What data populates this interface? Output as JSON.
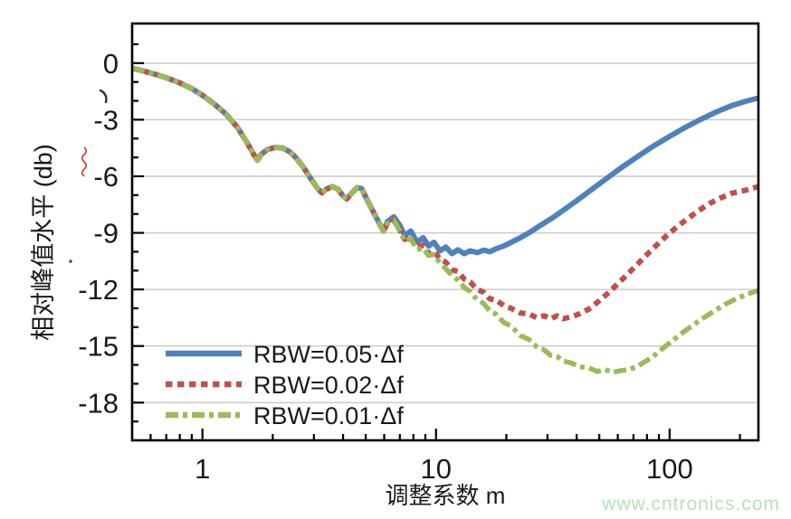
{
  "watermark": {
    "text": "www.cntronics.com",
    "color": "#b7e3b7"
  },
  "chart_data": {
    "type": "line",
    "title": "",
    "xlabel": "调整系数 m",
    "ylabel": "相对峰值水平 (db)",
    "x_scale": "log",
    "xlim": [
      0.5,
      240
    ],
    "ylim": [
      -20,
      2.1
    ],
    "x_major_ticks": [
      1,
      10,
      100
    ],
    "x_major_tick_labels": [
      "1",
      "10",
      "100"
    ],
    "x_minor_ticks": [
      0.6,
      0.7,
      0.8,
      0.9,
      2,
      3,
      4,
      5,
      6,
      7,
      8,
      9,
      20,
      30,
      40,
      50,
      60,
      70,
      80,
      90,
      200
    ],
    "y_major_ticks": [
      0,
      -3,
      -6,
      -9,
      -12,
      -15,
      -18
    ],
    "y_major_tick_labels": [
      "0",
      "-3",
      "-6",
      "-9",
      "-12",
      "-15",
      "-18"
    ],
    "y_minor_ticks": [
      1,
      -1,
      -2,
      -4,
      -5,
      -7,
      -8,
      -10,
      -11,
      -13,
      -14,
      -16,
      -17,
      -19
    ],
    "grid": "horizontal-major-only",
    "grid_color": "#cccccc",
    "frame_color": "#000000",
    "text_color": "#1a1a1a",
    "legend_position": "lower-left-inside",
    "series": [
      {
        "name": "RBW=0.05·Δf",
        "color": "#4f81bd",
        "style": "solid",
        "points": [
          [
            0.5,
            -0.28
          ],
          [
            0.56,
            -0.42
          ],
          [
            0.63,
            -0.6
          ],
          [
            0.71,
            -0.8
          ],
          [
            0.8,
            -1.05
          ],
          [
            0.9,
            -1.35
          ],
          [
            1.0,
            -1.7
          ],
          [
            1.12,
            -2.15
          ],
          [
            1.26,
            -2.7
          ],
          [
            1.41,
            -3.4
          ],
          [
            1.55,
            -4.2
          ],
          [
            1.65,
            -4.8
          ],
          [
            1.72,
            -5.15
          ],
          [
            1.78,
            -4.85
          ],
          [
            1.9,
            -4.58
          ],
          [
            2.05,
            -4.47
          ],
          [
            2.2,
            -4.5
          ],
          [
            2.35,
            -4.68
          ],
          [
            2.5,
            -4.98
          ],
          [
            2.7,
            -5.5
          ],
          [
            2.9,
            -6.1
          ],
          [
            3.1,
            -6.62
          ],
          [
            3.25,
            -6.88
          ],
          [
            3.4,
            -6.68
          ],
          [
            3.6,
            -6.55
          ],
          [
            3.8,
            -6.68
          ],
          [
            4.0,
            -7.05
          ],
          [
            4.15,
            -7.2
          ],
          [
            4.35,
            -6.9
          ],
          [
            4.6,
            -6.6
          ],
          [
            4.8,
            -6.65
          ],
          [
            5.1,
            -7.3
          ],
          [
            5.5,
            -8.1
          ],
          [
            5.95,
            -8.9
          ],
          [
            6.2,
            -8.4
          ],
          [
            6.6,
            -8.15
          ],
          [
            7.0,
            -8.6
          ],
          [
            7.35,
            -9.15
          ],
          [
            7.8,
            -8.9
          ],
          [
            8.3,
            -9.5
          ],
          [
            8.8,
            -9.25
          ],
          [
            9.3,
            -9.7
          ],
          [
            9.8,
            -9.5
          ],
          [
            10.4,
            -9.95
          ],
          [
            11.0,
            -9.75
          ],
          [
            11.7,
            -10.1
          ],
          [
            12.4,
            -9.9
          ],
          [
            13.2,
            -10.1
          ],
          [
            14.0,
            -9.95
          ],
          [
            15.0,
            -10.05
          ],
          [
            16.0,
            -9.92
          ],
          [
            17.0,
            -10.0
          ],
          [
            18.0,
            -9.85
          ],
          [
            19.5,
            -9.7
          ],
          [
            21.0,
            -9.5
          ],
          [
            23.0,
            -9.25
          ],
          [
            25.0,
            -9.0
          ],
          [
            28.0,
            -8.6
          ],
          [
            32.0,
            -8.15
          ],
          [
            36.0,
            -7.7
          ],
          [
            41.0,
            -7.2
          ],
          [
            47.0,
            -6.65
          ],
          [
            54.0,
            -6.1
          ],
          [
            62.0,
            -5.55
          ],
          [
            72.0,
            -5.0
          ],
          [
            84.0,
            -4.45
          ],
          [
            98.0,
            -3.95
          ],
          [
            115.0,
            -3.45
          ],
          [
            135.0,
            -3.0
          ],
          [
            158.0,
            -2.6
          ],
          [
            185.0,
            -2.25
          ],
          [
            215.0,
            -2.0
          ],
          [
            240.0,
            -1.85
          ]
        ]
      },
      {
        "name": "RBW=0.02·Δf",
        "color": "#c0504d",
        "style": "dashed",
        "points": [
          [
            0.5,
            -0.28
          ],
          [
            0.56,
            -0.42
          ],
          [
            0.63,
            -0.6
          ],
          [
            0.71,
            -0.8
          ],
          [
            0.8,
            -1.05
          ],
          [
            0.9,
            -1.35
          ],
          [
            1.0,
            -1.7
          ],
          [
            1.12,
            -2.15
          ],
          [
            1.26,
            -2.7
          ],
          [
            1.41,
            -3.4
          ],
          [
            1.55,
            -4.2
          ],
          [
            1.65,
            -4.8
          ],
          [
            1.72,
            -5.15
          ],
          [
            1.78,
            -4.85
          ],
          [
            1.9,
            -4.58
          ],
          [
            2.05,
            -4.47
          ],
          [
            2.2,
            -4.5
          ],
          [
            2.35,
            -4.68
          ],
          [
            2.5,
            -4.98
          ],
          [
            2.7,
            -5.5
          ],
          [
            2.9,
            -6.1
          ],
          [
            3.1,
            -6.62
          ],
          [
            3.25,
            -6.88
          ],
          [
            3.4,
            -6.68
          ],
          [
            3.6,
            -6.55
          ],
          [
            3.8,
            -6.68
          ],
          [
            4.0,
            -7.05
          ],
          [
            4.15,
            -7.2
          ],
          [
            4.35,
            -6.9
          ],
          [
            4.6,
            -6.6
          ],
          [
            4.8,
            -6.65
          ],
          [
            5.1,
            -7.3
          ],
          [
            5.5,
            -8.1
          ],
          [
            5.95,
            -8.9
          ],
          [
            6.2,
            -8.5
          ],
          [
            6.6,
            -8.3
          ],
          [
            7.0,
            -8.85
          ],
          [
            7.35,
            -9.35
          ],
          [
            7.8,
            -9.2
          ],
          [
            8.3,
            -9.8
          ],
          [
            8.8,
            -9.65
          ],
          [
            9.3,
            -10.1
          ],
          [
            9.8,
            -9.95
          ],
          [
            10.4,
            -10.4
          ],
          [
            11.0,
            -10.55
          ],
          [
            11.7,
            -10.95
          ],
          [
            12.4,
            -11.05
          ],
          [
            13.2,
            -11.45
          ],
          [
            14.0,
            -11.6
          ],
          [
            15.0,
            -12.0
          ],
          [
            16.0,
            -12.15
          ],
          [
            17.0,
            -12.5
          ],
          [
            18.0,
            -12.55
          ],
          [
            19.5,
            -12.85
          ],
          [
            21.0,
            -13.0
          ],
          [
            23.0,
            -13.25
          ],
          [
            25.0,
            -13.3
          ],
          [
            27.0,
            -13.5
          ],
          [
            29.0,
            -13.4
          ],
          [
            31.0,
            -13.55
          ],
          [
            33.0,
            -13.4
          ],
          [
            35.0,
            -13.55
          ],
          [
            38.0,
            -13.45
          ],
          [
            41.0,
            -13.3
          ],
          [
            45.0,
            -13.05
          ],
          [
            50.0,
            -12.6
          ],
          [
            55.0,
            -12.15
          ],
          [
            60.0,
            -11.7
          ],
          [
            66.0,
            -11.2
          ],
          [
            73.0,
            -10.65
          ],
          [
            80.0,
            -10.15
          ],
          [
            88.0,
            -9.65
          ],
          [
            97.0,
            -9.15
          ],
          [
            107.0,
            -8.7
          ],
          [
            118.0,
            -8.3
          ],
          [
            132.0,
            -7.85
          ],
          [
            148.0,
            -7.45
          ],
          [
            165.0,
            -7.15
          ],
          [
            185.0,
            -6.9
          ],
          [
            210.0,
            -6.75
          ],
          [
            240.0,
            -6.55
          ]
        ]
      },
      {
        "name": "RBW=0.01·Δf",
        "color": "#9bbb59",
        "style": "dashdot",
        "points": [
          [
            0.5,
            -0.28
          ],
          [
            0.56,
            -0.42
          ],
          [
            0.63,
            -0.6
          ],
          [
            0.71,
            -0.8
          ],
          [
            0.8,
            -1.05
          ],
          [
            0.9,
            -1.35
          ],
          [
            1.0,
            -1.7
          ],
          [
            1.12,
            -2.15
          ],
          [
            1.26,
            -2.7
          ],
          [
            1.41,
            -3.4
          ],
          [
            1.55,
            -4.2
          ],
          [
            1.65,
            -4.8
          ],
          [
            1.72,
            -5.15
          ],
          [
            1.78,
            -4.85
          ],
          [
            1.9,
            -4.58
          ],
          [
            2.05,
            -4.47
          ],
          [
            2.2,
            -4.5
          ],
          [
            2.35,
            -4.68
          ],
          [
            2.5,
            -4.98
          ],
          [
            2.7,
            -5.5
          ],
          [
            2.9,
            -6.1
          ],
          [
            3.1,
            -6.62
          ],
          [
            3.25,
            -6.88
          ],
          [
            3.4,
            -6.68
          ],
          [
            3.6,
            -6.55
          ],
          [
            3.8,
            -6.68
          ],
          [
            4.0,
            -7.05
          ],
          [
            4.15,
            -7.2
          ],
          [
            4.35,
            -6.9
          ],
          [
            4.6,
            -6.6
          ],
          [
            4.8,
            -6.65
          ],
          [
            5.1,
            -7.3
          ],
          [
            5.5,
            -8.1
          ],
          [
            5.95,
            -8.9
          ],
          [
            6.2,
            -8.5
          ],
          [
            6.6,
            -8.35
          ],
          [
            7.0,
            -8.9
          ],
          [
            7.35,
            -9.45
          ],
          [
            7.8,
            -9.3
          ],
          [
            8.3,
            -9.9
          ],
          [
            8.8,
            -9.8
          ],
          [
            9.3,
            -10.2
          ],
          [
            9.8,
            -10.15
          ],
          [
            10.4,
            -10.6
          ],
          [
            11.0,
            -10.9
          ],
          [
            11.7,
            -11.25
          ],
          [
            12.4,
            -11.5
          ],
          [
            13.2,
            -11.9
          ],
          [
            14.0,
            -12.1
          ],
          [
            15.0,
            -12.55
          ],
          [
            16.0,
            -12.75
          ],
          [
            17.0,
            -13.15
          ],
          [
            18.0,
            -13.3
          ],
          [
            19.5,
            -13.75
          ],
          [
            21.0,
            -13.95
          ],
          [
            23.0,
            -14.45
          ],
          [
            25.0,
            -14.65
          ],
          [
            27.0,
            -15.05
          ],
          [
            29.0,
            -15.2
          ],
          [
            31.0,
            -15.5
          ],
          [
            33.0,
            -15.55
          ],
          [
            35.0,
            -15.8
          ],
          [
            38.0,
            -15.9
          ],
          [
            41.0,
            -16.1
          ],
          [
            45.0,
            -16.15
          ],
          [
            49.0,
            -16.35
          ],
          [
            53.0,
            -16.25
          ],
          [
            57.0,
            -16.4
          ],
          [
            62.0,
            -16.3
          ],
          [
            67.0,
            -16.25
          ],
          [
            72.0,
            -16.1
          ],
          [
            78.0,
            -15.85
          ],
          [
            85.0,
            -15.55
          ],
          [
            93.0,
            -15.15
          ],
          [
            102.0,
            -14.75
          ],
          [
            112.0,
            -14.35
          ],
          [
            124.0,
            -13.95
          ],
          [
            138.0,
            -13.55
          ],
          [
            155.0,
            -13.15
          ],
          [
            172.0,
            -12.8
          ],
          [
            192.0,
            -12.5
          ],
          [
            215.0,
            -12.25
          ],
          [
            240.0,
            -12.05
          ]
        ]
      }
    ]
  }
}
